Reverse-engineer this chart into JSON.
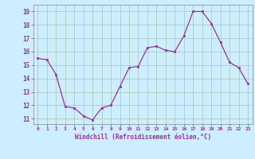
{
  "x": [
    0,
    1,
    2,
    3,
    4,
    5,
    6,
    7,
    8,
    9,
    10,
    11,
    12,
    13,
    14,
    15,
    16,
    17,
    18,
    19,
    20,
    21,
    22,
    23
  ],
  "y": [
    15.5,
    15.4,
    14.3,
    11.9,
    11.8,
    11.2,
    10.9,
    11.8,
    12.0,
    13.4,
    14.8,
    14.9,
    16.3,
    16.4,
    16.1,
    16.0,
    17.2,
    19.0,
    19.0,
    18.1,
    16.7,
    15.2,
    14.8,
    13.6
  ],
  "line_color": "#993399",
  "marker": "s",
  "marker_size": 2,
  "bg_color": "#cceeff",
  "grid_color": "#aaccbb",
  "xlabel": "Windchill (Refroidissement éolien,°C)",
  "xlabel_color": "#993399",
  "ylabel_ticks": [
    11,
    12,
    13,
    14,
    15,
    16,
    17,
    18,
    19
  ],
  "xlim": [
    -0.5,
    23.5
  ],
  "ylim": [
    10.6,
    19.5
  ],
  "xtick_labels": [
    "0",
    "1",
    "2",
    "3",
    "4",
    "5",
    "6",
    "7",
    "8",
    "9",
    "10",
    "11",
    "12",
    "13",
    "14",
    "15",
    "16",
    "17",
    "18",
    "19",
    "20",
    "21",
    "22",
    "23"
  ]
}
